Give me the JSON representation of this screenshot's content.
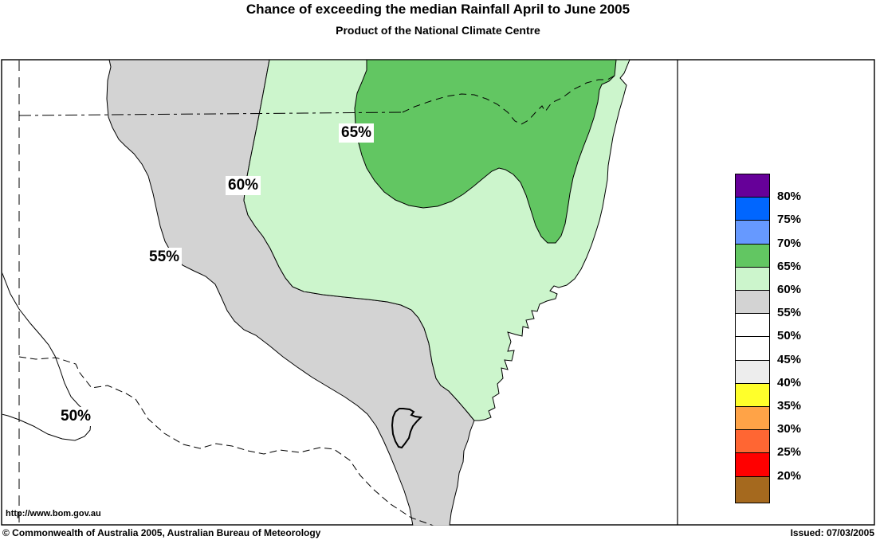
{
  "title": "Chance of exceeding the median Rainfall April to June 2005",
  "subtitle": "Product of the National Climate Centre",
  "map": {
    "url_label": "http://www.bom.gov.au",
    "contour_labels": [
      "65%",
      "60%",
      "55%",
      "50%"
    ]
  },
  "legend": {
    "entries": [
      {
        "color": "#660099",
        "label": "80%"
      },
      {
        "color": "#0066FF",
        "label": "75%"
      },
      {
        "color": "#6699FF",
        "label": "70%"
      },
      {
        "color": "#62C662",
        "label": "65%"
      },
      {
        "color": "#CCF5CC",
        "label": "60%"
      },
      {
        "color": "#D3D3D3",
        "label": "55%"
      },
      {
        "color": "#FFFFFF",
        "label": "50%"
      },
      {
        "color": "#FFFFFF",
        "label": "45%"
      },
      {
        "color": "#EDEDED",
        "label": "40%"
      },
      {
        "color": "#FFFF2B",
        "label": "35%"
      },
      {
        "color": "#FFA347",
        "label": "30%"
      },
      {
        "color": "#FF6633",
        "label": "25%"
      },
      {
        "color": "#FF0000",
        "label": "20%"
      },
      {
        "color": "#A5691E",
        "label": ""
      }
    ]
  },
  "colors": {
    "band_65_70": "#62C662",
    "band_60_65": "#CCF5CC",
    "band_55_60": "#D3D3D3",
    "ocean": "#FFFFFF"
  },
  "footer": {
    "copyright": "© Commonwealth of Australia 2005, Australian Bureau of Meteorology",
    "issued": "Issued: 07/03/2005"
  }
}
